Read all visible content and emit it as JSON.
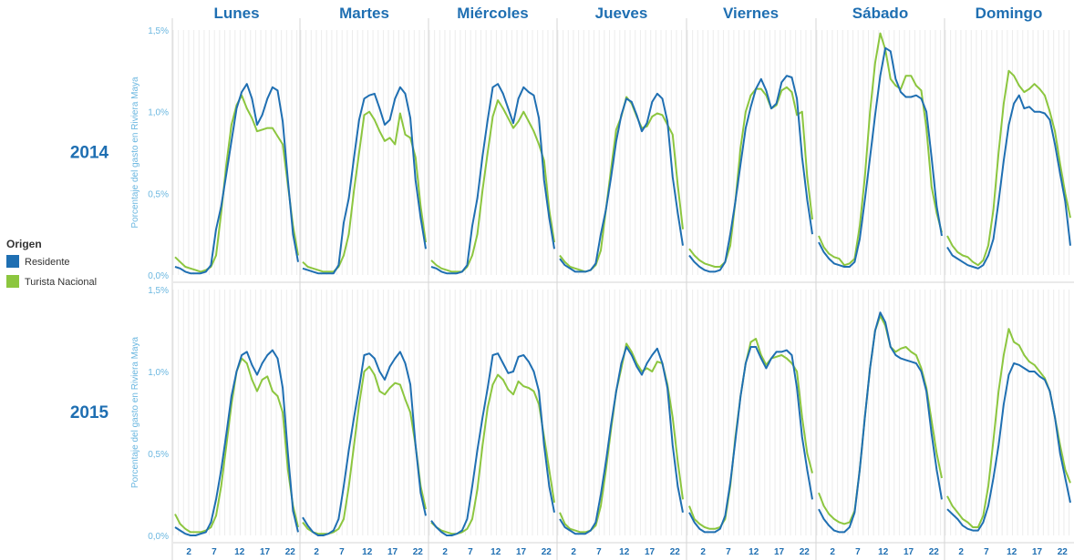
{
  "colors": {
    "residente": "#1f6fb2",
    "turista": "#8cc63f",
    "header_text": "#1f6fb2",
    "axis_text": "#6bb7e0",
    "grid": "#ececec",
    "divider": "#d6d6d6"
  },
  "legend": {
    "title": "Origen",
    "items": [
      {
        "label": "Residente",
        "color": "#1f6fb2"
      },
      {
        "label": "Turista Nacional",
        "color": "#8cc63f"
      }
    ]
  },
  "chart_data": {
    "type": "line",
    "ylabel": "Porcentaje del gasto en Riviera Maya",
    "ylim": [
      0,
      1.5
    ],
    "yticks": [
      "0,0%",
      "0,5%",
      "1,0%",
      "1,5%"
    ],
    "xticks": [
      2,
      7,
      12,
      17,
      22
    ],
    "columns": [
      "Lunes",
      "Martes",
      "Miércoles",
      "Jueves",
      "Viernes",
      "Sábado",
      "Domingo"
    ],
    "rows": [
      "2014",
      "2015"
    ],
    "series_names": [
      "Residente",
      "Turista Nacional"
    ],
    "panels": {
      "2014": {
        "Lunes": {
          "Residente": [
            0.05,
            0.04,
            0.02,
            0.01,
            0.01,
            0.01,
            0.02,
            0.06,
            0.28,
            0.42,
            0.62,
            0.82,
            1.02,
            1.12,
            1.17,
            1.08,
            0.92,
            0.98,
            1.08,
            1.15,
            1.13,
            0.94,
            0.58,
            0.25,
            0.08
          ],
          "Turista Nacional": [
            0.11,
            0.08,
            0.05,
            0.04,
            0.03,
            0.02,
            0.03,
            0.05,
            0.12,
            0.38,
            0.68,
            0.92,
            1.04,
            1.1,
            1.02,
            0.96,
            0.88,
            0.89,
            0.9,
            0.9,
            0.85,
            0.8,
            0.55,
            0.3,
            0.12
          ]
        },
        "Martes": {
          "Residente": [
            0.04,
            0.03,
            0.02,
            0.01,
            0.01,
            0.01,
            0.01,
            0.06,
            0.32,
            0.47,
            0.72,
            0.95,
            1.08,
            1.1,
            1.11,
            1.02,
            0.92,
            0.95,
            1.08,
            1.15,
            1.11,
            0.96,
            0.58,
            0.35,
            0.16
          ],
          "Turista Nacional": [
            0.08,
            0.05,
            0.04,
            0.03,
            0.02,
            0.02,
            0.02,
            0.05,
            0.12,
            0.25,
            0.52,
            0.75,
            0.98,
            1.0,
            0.95,
            0.88,
            0.82,
            0.84,
            0.8,
            0.99,
            0.86,
            0.84,
            0.72,
            0.42,
            0.2
          ]
        },
        "Miércoles": {
          "Residente": [
            0.05,
            0.04,
            0.02,
            0.01,
            0.01,
            0.01,
            0.02,
            0.06,
            0.3,
            0.47,
            0.73,
            0.95,
            1.15,
            1.17,
            1.11,
            1.02,
            0.93,
            1.08,
            1.15,
            1.12,
            1.1,
            0.96,
            0.58,
            0.35,
            0.16
          ],
          "Turista Nacional": [
            0.09,
            0.06,
            0.04,
            0.03,
            0.02,
            0.02,
            0.02,
            0.05,
            0.12,
            0.25,
            0.52,
            0.75,
            0.97,
            1.07,
            1.02,
            0.96,
            0.9,
            0.94,
            1.0,
            0.94,
            0.88,
            0.8,
            0.7,
            0.4,
            0.2
          ]
        },
        "Jueves": {
          "Residente": [
            0.1,
            0.06,
            0.04,
            0.02,
            0.02,
            0.02,
            0.03,
            0.07,
            0.25,
            0.4,
            0.6,
            0.82,
            0.98,
            1.08,
            1.06,
            0.98,
            0.88,
            0.93,
            1.06,
            1.11,
            1.08,
            0.94,
            0.6,
            0.38,
            0.18
          ],
          "Turista Nacional": [
            0.12,
            0.08,
            0.05,
            0.04,
            0.03,
            0.02,
            0.03,
            0.06,
            0.15,
            0.4,
            0.65,
            0.89,
            0.97,
            1.09,
            1.05,
            0.97,
            0.9,
            0.91,
            0.97,
            0.99,
            0.98,
            0.92,
            0.86,
            0.55,
            0.28
          ]
        },
        "Viernes": {
          "Residente": [
            0.12,
            0.08,
            0.05,
            0.03,
            0.02,
            0.02,
            0.03,
            0.08,
            0.25,
            0.45,
            0.68,
            0.9,
            1.03,
            1.14,
            1.2,
            1.13,
            1.02,
            1.05,
            1.18,
            1.22,
            1.21,
            1.08,
            0.72,
            0.46,
            0.25
          ],
          "Turista Nacional": [
            0.16,
            0.12,
            0.09,
            0.07,
            0.06,
            0.05,
            0.05,
            0.08,
            0.18,
            0.45,
            0.78,
            1.0,
            1.1,
            1.14,
            1.14,
            1.1,
            1.02,
            1.04,
            1.13,
            1.15,
            1.12,
            0.98,
            1.0,
            0.6,
            0.34
          ]
        },
        "Sábado": {
          "Residente": [
            0.2,
            0.14,
            0.1,
            0.07,
            0.06,
            0.05,
            0.05,
            0.08,
            0.22,
            0.46,
            0.72,
            0.98,
            1.22,
            1.39,
            1.37,
            1.2,
            1.12,
            1.09,
            1.09,
            1.1,
            1.08,
            1.0,
            0.72,
            0.42,
            0.24
          ],
          "Turista Nacional": [
            0.24,
            0.17,
            0.13,
            0.11,
            0.1,
            0.06,
            0.07,
            0.1,
            0.3,
            0.6,
            1.0,
            1.3,
            1.48,
            1.38,
            1.2,
            1.16,
            1.14,
            1.22,
            1.22,
            1.16,
            1.13,
            0.9,
            0.54,
            0.38,
            0.26
          ]
        },
        "Domingo": {
          "Residente": [
            0.17,
            0.12,
            0.1,
            0.08,
            0.06,
            0.05,
            0.04,
            0.06,
            0.12,
            0.22,
            0.45,
            0.7,
            0.92,
            1.05,
            1.1,
            1.02,
            1.03,
            1.0,
            1.0,
            0.99,
            0.95,
            0.8,
            0.62,
            0.45,
            0.18
          ],
          "Turista Nacional": [
            0.24,
            0.18,
            0.14,
            0.12,
            0.11,
            0.08,
            0.06,
            0.09,
            0.18,
            0.4,
            0.75,
            1.05,
            1.25,
            1.22,
            1.16,
            1.12,
            1.14,
            1.17,
            1.14,
            1.1,
            1.0,
            0.88,
            0.68,
            0.5,
            0.35
          ]
        }
      },
      "2015": {
        "Lunes": {
          "Residente": [
            0.05,
            0.03,
            0.01,
            0.0,
            0.0,
            0.01,
            0.02,
            0.08,
            0.22,
            0.4,
            0.62,
            0.85,
            1.0,
            1.1,
            1.12,
            1.04,
            0.98,
            1.05,
            1.1,
            1.13,
            1.08,
            0.9,
            0.5,
            0.15,
            0.02
          ],
          "Turista Nacional": [
            0.13,
            0.07,
            0.04,
            0.02,
            0.02,
            0.02,
            0.03,
            0.05,
            0.12,
            0.3,
            0.55,
            0.8,
            1.0,
            1.08,
            1.05,
            0.95,
            0.88,
            0.95,
            0.97,
            0.88,
            0.85,
            0.75,
            0.4,
            0.18,
            0.05
          ]
        },
        "Martes": {
          "Residente": [
            0.11,
            0.06,
            0.02,
            0.0,
            0.0,
            0.01,
            0.03,
            0.1,
            0.3,
            0.52,
            0.72,
            0.9,
            1.1,
            1.11,
            1.08,
            1.0,
            0.95,
            1.03,
            1.08,
            1.12,
            1.05,
            0.92,
            0.55,
            0.26,
            0.12
          ],
          "Turista Nacional": [
            0.08,
            0.04,
            0.02,
            0.01,
            0.01,
            0.01,
            0.02,
            0.04,
            0.1,
            0.3,
            0.55,
            0.8,
            1.0,
            1.03,
            0.98,
            0.88,
            0.86,
            0.9,
            0.93,
            0.92,
            0.83,
            0.75,
            0.55,
            0.3,
            0.16
          ]
        },
        "Miércoles": {
          "Residente": [
            0.09,
            0.05,
            0.02,
            0.0,
            0.0,
            0.01,
            0.03,
            0.1,
            0.3,
            0.52,
            0.72,
            0.9,
            1.1,
            1.11,
            1.05,
            0.99,
            1.0,
            1.09,
            1.1,
            1.06,
            1.0,
            0.88,
            0.55,
            0.3,
            0.14
          ],
          "Turista Nacional": [
            0.08,
            0.05,
            0.03,
            0.02,
            0.01,
            0.01,
            0.02,
            0.04,
            0.1,
            0.28,
            0.55,
            0.78,
            0.92,
            0.98,
            0.95,
            0.89,
            0.86,
            0.94,
            0.91,
            0.9,
            0.88,
            0.8,
            0.6,
            0.4,
            0.2
          ]
        },
        "Jueves": {
          "Residente": [
            0.1,
            0.05,
            0.03,
            0.01,
            0.01,
            0.01,
            0.03,
            0.08,
            0.25,
            0.45,
            0.68,
            0.88,
            1.05,
            1.15,
            1.1,
            1.03,
            0.98,
            1.05,
            1.1,
            1.14,
            1.05,
            0.9,
            0.55,
            0.3,
            0.14
          ],
          "Turista Nacional": [
            0.14,
            0.07,
            0.04,
            0.03,
            0.02,
            0.02,
            0.03,
            0.06,
            0.18,
            0.4,
            0.65,
            0.88,
            1.02,
            1.17,
            1.12,
            1.05,
            1.0,
            1.02,
            1.0,
            1.06,
            1.05,
            0.92,
            0.72,
            0.45,
            0.22
          ]
        },
        "Viernes": {
          "Residente": [
            0.14,
            0.08,
            0.04,
            0.02,
            0.02,
            0.02,
            0.04,
            0.12,
            0.32,
            0.58,
            0.85,
            1.05,
            1.15,
            1.15,
            1.08,
            1.02,
            1.08,
            1.12,
            1.12,
            1.13,
            1.1,
            0.9,
            0.6,
            0.4,
            0.22
          ],
          "Turista Nacional": [
            0.18,
            0.1,
            0.07,
            0.05,
            0.04,
            0.04,
            0.05,
            0.1,
            0.3,
            0.6,
            0.85,
            1.05,
            1.18,
            1.2,
            1.1,
            1.04,
            1.08,
            1.09,
            1.1,
            1.08,
            1.05,
            1.0,
            0.72,
            0.5,
            0.38
          ]
        },
        "Sábado": {
          "Residente": [
            0.16,
            0.1,
            0.06,
            0.03,
            0.02,
            0.02,
            0.05,
            0.14,
            0.4,
            0.72,
            1.02,
            1.25,
            1.36,
            1.3,
            1.15,
            1.1,
            1.08,
            1.07,
            1.06,
            1.05,
            1.0,
            0.88,
            0.62,
            0.4,
            0.22
          ],
          "Turista Nacional": [
            0.26,
            0.18,
            0.13,
            0.1,
            0.08,
            0.07,
            0.08,
            0.15,
            0.4,
            0.72,
            1.02,
            1.25,
            1.34,
            1.28,
            1.15,
            1.12,
            1.14,
            1.15,
            1.12,
            1.1,
            1.02,
            0.9,
            0.7,
            0.5,
            0.35
          ]
        },
        "Domingo": {
          "Residente": [
            0.16,
            0.13,
            0.1,
            0.06,
            0.04,
            0.03,
            0.03,
            0.08,
            0.18,
            0.35,
            0.55,
            0.8,
            0.98,
            1.05,
            1.04,
            1.02,
            1.0,
            1.0,
            0.97,
            0.95,
            0.88,
            0.72,
            0.5,
            0.35,
            0.2
          ],
          "Turista Nacional": [
            0.24,
            0.18,
            0.14,
            0.1,
            0.08,
            0.05,
            0.05,
            0.12,
            0.3,
            0.58,
            0.88,
            1.1,
            1.26,
            1.18,
            1.16,
            1.1,
            1.06,
            1.04,
            1.0,
            0.96,
            0.88,
            0.72,
            0.55,
            0.4,
            0.32
          ]
        }
      }
    }
  }
}
